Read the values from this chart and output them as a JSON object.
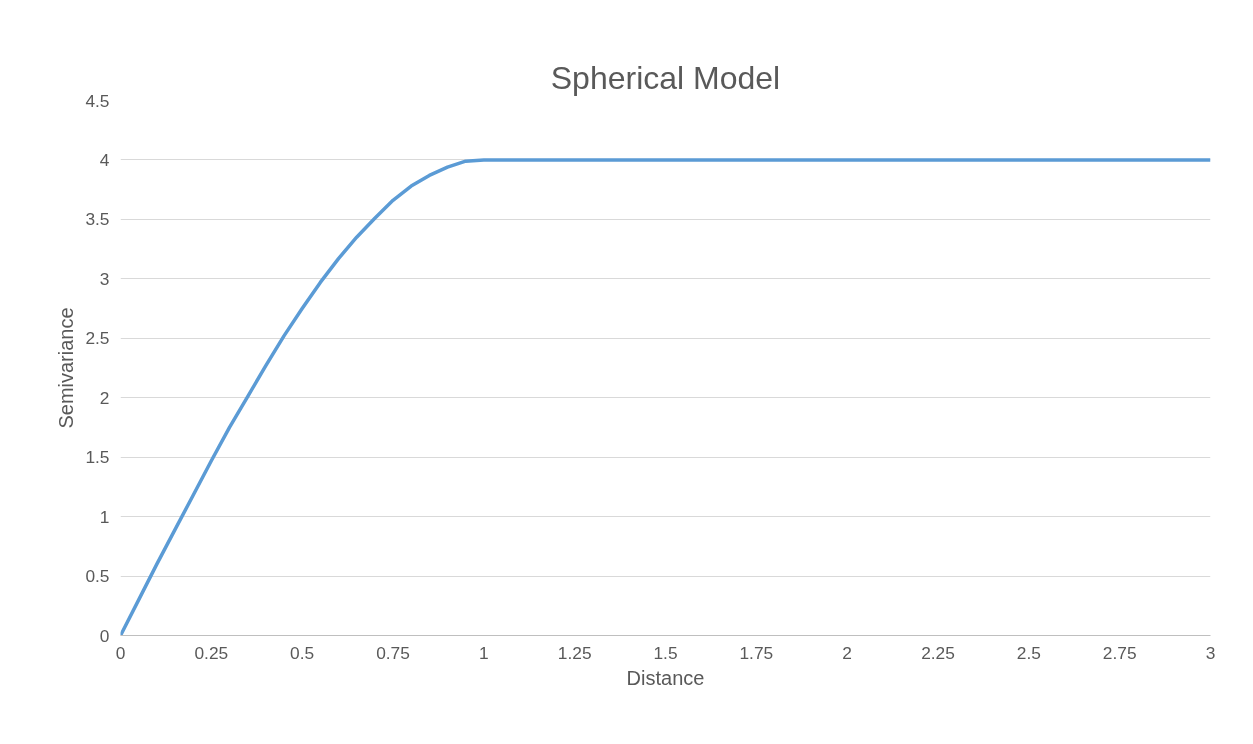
{
  "chart_data": {
    "type": "line",
    "title": "Spherical Model",
    "xlabel": "Distance",
    "ylabel": "Semivariance",
    "x": [
      0,
      0.05,
      0.1,
      0.15,
      0.2,
      0.25,
      0.3,
      0.35,
      0.4,
      0.45,
      0.5,
      0.55,
      0.6,
      0.65,
      0.7,
      0.75,
      0.8,
      0.85,
      0.9,
      0.95,
      1,
      1.5,
      2,
      2.5,
      3
    ],
    "series": [
      {
        "color": "#5b9bd5",
        "values": [
          0,
          0.3,
          0.6,
          0.89,
          1.18,
          1.47,
          1.75,
          2.01,
          2.27,
          2.52,
          2.75,
          2.97,
          3.17,
          3.35,
          3.51,
          3.66,
          3.78,
          3.87,
          3.94,
          3.99,
          4,
          4,
          4,
          4,
          4
        ]
      }
    ],
    "xlim": [
      0,
      3
    ],
    "xticks": [
      0,
      0.25,
      0.5,
      0.75,
      1,
      1.25,
      1.5,
      1.75,
      2,
      2.25,
      2.5,
      2.75,
      3
    ],
    "ylim": [
      0,
      4.5
    ],
    "yticks": [
      0,
      0.5,
      1,
      1.5,
      2,
      2.5,
      3,
      3.5,
      4,
      4.5
    ],
    "grid": "y",
    "marker": "none",
    "line_style": "solid"
  }
}
